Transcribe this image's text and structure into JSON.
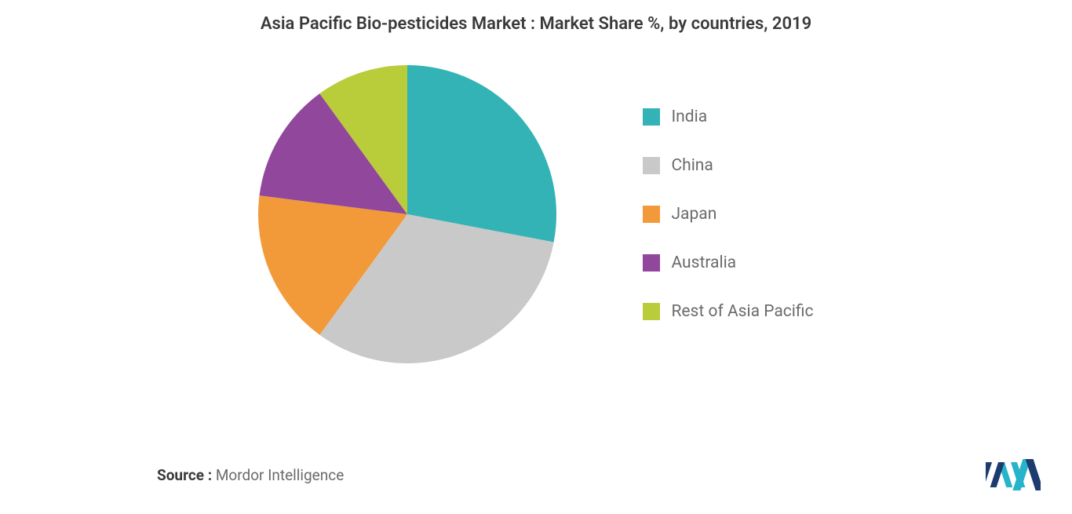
{
  "chart": {
    "type": "pie",
    "title": "Asia Pacific Bio-pesticides Market : Market Share %, by countries, 2019",
    "title_fontsize": 22,
    "title_color": "#3a3a3a",
    "background_color": "#ffffff",
    "slices": [
      {
        "label": "India",
        "value": 28,
        "color": "#34b3b6"
      },
      {
        "label": "China",
        "value": 32,
        "color": "#c9c9c9"
      },
      {
        "label": "Japan",
        "value": 17,
        "color": "#f29a3a"
      },
      {
        "label": "Australia",
        "value": 13,
        "color": "#91489c"
      },
      {
        "label": "Rest of Asia Pacific",
        "value": 10,
        "color": "#b9cc3a"
      }
    ],
    "start_angle_deg": -90,
    "radius": 190,
    "legend": {
      "position": "right",
      "swatch_size": 22,
      "label_fontsize": 21,
      "label_color": "#6b6b6b",
      "gap": 38
    }
  },
  "source": {
    "label": "Source :",
    "name": "Mordor Intelligence",
    "fontsize": 19,
    "label_color": "#3a3a3a",
    "name_color": "#6b6b6b"
  },
  "logo": {
    "bar_color": "#1c3b6e",
    "accent_color": "#27b3c9"
  }
}
